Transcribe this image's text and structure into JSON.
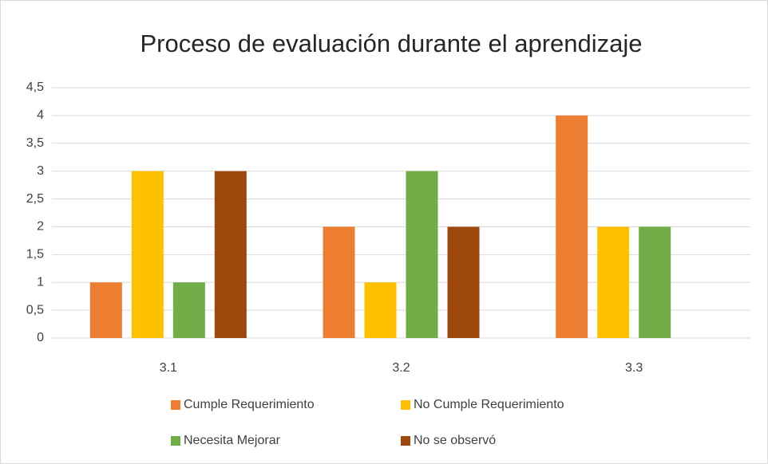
{
  "chart_data": {
    "type": "bar",
    "title": "Proceso de evaluación durante el aprendizaje",
    "categories": [
      "3.1",
      "3.2",
      "3.3"
    ],
    "series": [
      {
        "name": "Cumple Requerimiento",
        "color": "#ED7D31",
        "values": [
          1,
          2,
          4
        ]
      },
      {
        "name": "No Cumple Requerimiento",
        "color": "#FFC000",
        "values": [
          3,
          1,
          2
        ]
      },
      {
        "name": "Necesita Mejorar",
        "color": "#70AD47",
        "values": [
          1,
          3,
          2
        ]
      },
      {
        "name": "No se observó",
        "color": "#9E480E",
        "values": [
          3,
          2,
          null
        ]
      }
    ],
    "ylim": [
      0,
      4.5
    ],
    "yticks": [
      0,
      {
        "value": 0.5,
        "label": "0,5"
      },
      1,
      {
        "value": 1.5,
        "label": "1,5"
      },
      2,
      {
        "value": 2.5,
        "label": "2,5"
      },
      3,
      {
        "value": 3.5,
        "label": "3,5"
      },
      4,
      {
        "value": 4.5,
        "label": "4,5"
      }
    ],
    "grid": true,
    "legend": "bottom"
  }
}
